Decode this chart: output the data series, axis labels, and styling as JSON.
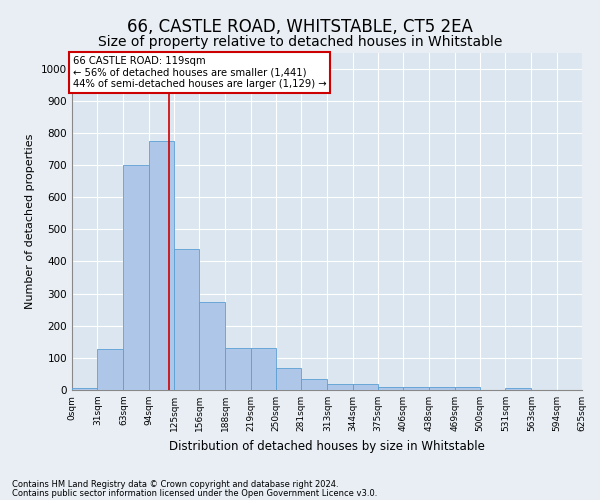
{
  "title": "66, CASTLE ROAD, WHITSTABLE, CT5 2EA",
  "subtitle": "Size of property relative to detached houses in Whitstable",
  "xlabel": "Distribution of detached houses by size in Whitstable",
  "ylabel": "Number of detached properties",
  "footer1": "Contains HM Land Registry data © Crown copyright and database right 2024.",
  "footer2": "Contains public sector information licensed under the Open Government Licence v3.0.",
  "bar_edges": [
    0,
    31,
    63,
    94,
    125,
    156,
    188,
    219,
    250,
    281,
    313,
    344,
    375,
    406,
    438,
    469,
    500,
    531,
    563,
    594,
    625
  ],
  "bar_heights": [
    5,
    127,
    700,
    775,
    440,
    275,
    130,
    130,
    68,
    35,
    20,
    20,
    10,
    10,
    10,
    10,
    0,
    5,
    0,
    0
  ],
  "bar_color": "#aec6e8",
  "bar_edge_color": "#5a9fd4",
  "property_size": 119,
  "property_label": "66 CASTLE ROAD: 119sqm",
  "annotation_line1": "← 56% of detached houses are smaller (1,441)",
  "annotation_line2": "44% of semi-detached houses are larger (1,129) →",
  "vline_color": "#cc0000",
  "annotation_box_edge_color": "#cc0000",
  "annotation_box_face_color": "#ffffff",
  "ylim": [
    0,
    1050
  ],
  "yticks": [
    0,
    100,
    200,
    300,
    400,
    500,
    600,
    700,
    800,
    900,
    1000
  ],
  "bg_color": "#e8eef4",
  "plot_bg_color": "#dce6f0",
  "grid_color": "#ffffff",
  "title_fontsize": 12,
  "subtitle_fontsize": 10
}
